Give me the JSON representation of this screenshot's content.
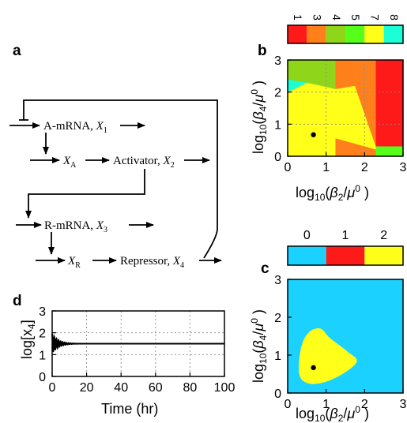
{
  "panels": {
    "a": "a",
    "b": "b",
    "c": "c",
    "d": "d"
  },
  "diagram": {
    "nodes": [
      {
        "id": "a-mrna",
        "label": "A-mRNA, ",
        "var": "X",
        "sub": "1"
      },
      {
        "id": "xa",
        "label": "",
        "var": "X",
        "sub": "A"
      },
      {
        "id": "activator",
        "label": "Activator, ",
        "var": "X",
        "sub": "2"
      },
      {
        "id": "r-mrna",
        "label": "R-mRNA, ",
        "var": "X",
        "sub": "3"
      },
      {
        "id": "xr",
        "label": "",
        "var": "X",
        "sub": "R"
      },
      {
        "id": "repressor",
        "label": "Repressor, ",
        "var": "X",
        "sub": "4"
      }
    ]
  },
  "axes": {
    "log_prefix": "log",
    "log_sub": "10",
    "beta2": "β",
    "beta2_sub": "2",
    "beta4": "β",
    "beta4_sub": "4",
    "mu": "μ",
    "mu_sup": "0",
    "ylabel_d": "log[x",
    "ylabel_d_sub": "4",
    "ylabel_d_end": "]",
    "xlabel_d": "Time (hr)"
  },
  "chart_data": [
    {
      "id": "b",
      "type": "heatmap",
      "xlim": [
        0,
        3
      ],
      "ylim": [
        0,
        3
      ],
      "xticks": [
        "0",
        "1",
        "2",
        "3"
      ],
      "yticks": [
        "0",
        "1",
        "2",
        "3"
      ],
      "grid": true,
      "colorbar": {
        "labels": [
          "1",
          "3",
          "4",
          "5",
          "7",
          "8"
        ],
        "colors": [
          "#ff1a1a",
          "#ff7f1a",
          "#8fd61a",
          "#55ff1a",
          "#ffff1a",
          "#1affd6"
        ]
      },
      "regions": [
        {
          "value": 7,
          "color": "#ffff1a",
          "polygon": [
            [
              0,
              0
            ],
            [
              1.25,
              0
            ],
            [
              1.25,
              0.55
            ],
            [
              2.3,
              0.2
            ],
            [
              2.3,
              0.3
            ],
            [
              1.75,
              2.2
            ],
            [
              1.25,
              2.1
            ],
            [
              0.5,
              2.3
            ],
            [
              0,
              2.0
            ]
          ]
        },
        {
          "value": 8,
          "color": "#1affd6",
          "polygon": [
            [
              0,
              2.0
            ],
            [
              0.5,
              2.3
            ],
            [
              0,
              2.4
            ]
          ]
        },
        {
          "value": 4,
          "color": "#8fd61a",
          "polygon": [
            [
              0,
              2.4
            ],
            [
              0.5,
              2.3
            ],
            [
              1.25,
              2.1
            ],
            [
              1.25,
              3
            ],
            [
              0,
              3
            ]
          ]
        },
        {
          "value": 3,
          "color": "#ff7f1a",
          "polygon": [
            [
              1.25,
              0
            ],
            [
              2.3,
              0
            ],
            [
              2.3,
              0.2
            ],
            [
              1.25,
              0.55
            ]
          ]
        },
        {
          "value": 3,
          "color": "#ff7f1a",
          "polygon": [
            [
              1.25,
              2.1
            ],
            [
              1.75,
              2.2
            ],
            [
              2.3,
              0.3
            ],
            [
              2.3,
              3
            ],
            [
              1.25,
              3
            ]
          ]
        },
        {
          "value": 1,
          "color": "#ff1a1a",
          "polygon": [
            [
              2.3,
              0.3
            ],
            [
              3,
              0.3
            ],
            [
              3,
              3
            ],
            [
              2.3,
              3
            ]
          ]
        },
        {
          "value": 5,
          "color": "#55ff1a",
          "polygon": [
            [
              2.3,
              0
            ],
            [
              3,
              0
            ],
            [
              3,
              0.3
            ],
            [
              2.3,
              0.3
            ]
          ]
        }
      ],
      "marker": {
        "x": 0.67,
        "y": 0.67
      }
    },
    {
      "id": "c",
      "type": "heatmap",
      "xlim": [
        0,
        3
      ],
      "ylim": [
        0,
        3
      ],
      "xticks": [
        "0",
        "1",
        "2",
        "3"
      ],
      "yticks": [
        "0",
        "1",
        "2",
        "3"
      ],
      "grid": false,
      "colorbar": {
        "labels": [
          "0",
          "1",
          "2"
        ],
        "colors": [
          "#1ad1ff",
          "#ff1a1a",
          "#ffff1a"
        ]
      },
      "background": {
        "value": 0,
        "color": "#1ad1ff"
      },
      "regions": [
        {
          "value": 2,
          "color": "#ffff1a",
          "polygon": [
            [
              0.3,
              0.5
            ],
            [
              0.55,
              0.25
            ],
            [
              1.0,
              0.3
            ],
            [
              1.5,
              0.55
            ],
            [
              1.8,
              0.85
            ],
            [
              1.55,
              1.1
            ],
            [
              1.1,
              1.45
            ],
            [
              0.85,
              1.7
            ],
            [
              0.55,
              1.6
            ],
            [
              0.35,
              1.2
            ]
          ]
        }
      ],
      "marker": {
        "x": 0.67,
        "y": 0.67
      }
    },
    {
      "id": "d",
      "type": "line",
      "xlim": [
        0,
        100
      ],
      "ylim": [
        0,
        3
      ],
      "xticks": [
        "0",
        "20",
        "40",
        "60",
        "80",
        "100"
      ],
      "yticks": [
        "0",
        "1",
        "2",
        "3"
      ],
      "grid": true,
      "steady_state": 1.5,
      "initial_amplitude": 0.45,
      "decay_rate": 0.28,
      "period": 1.2
    }
  ]
}
